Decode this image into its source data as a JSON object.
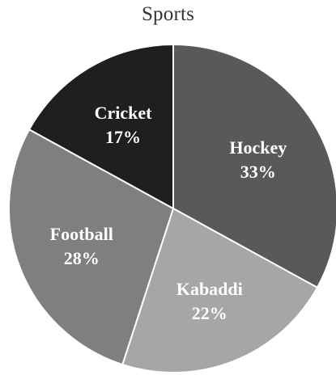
{
  "chart_data": {
    "type": "pie",
    "title": "Sports",
    "slices": [
      {
        "label": "Hockey",
        "value": 33,
        "value_label": "33%",
        "color": "#595959"
      },
      {
        "label": "Kabaddi",
        "value": 22,
        "value_label": "22%",
        "color": "#a6a6a6"
      },
      {
        "label": "Football",
        "value": 28,
        "value_label": "28%",
        "color": "#7f7f7f"
      },
      {
        "label": "Cricket",
        "value": 17,
        "value_label": "17%",
        "color": "#1f1f1f"
      }
    ],
    "start_angle_deg": 0,
    "direction": "clockwise",
    "legend": "none",
    "border_color": "#ffffff"
  }
}
